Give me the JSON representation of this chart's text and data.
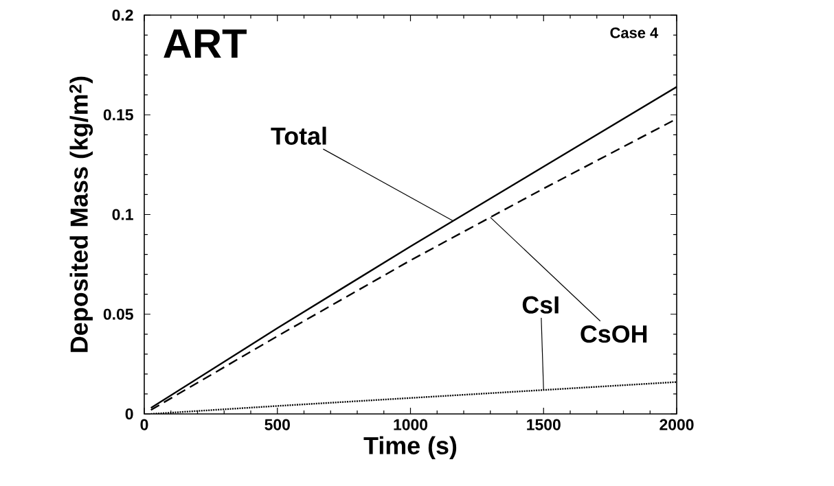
{
  "chart_data": {
    "type": "line",
    "xlabel": "Time (s)",
    "ylabel": "Deposited Mass (kg/m$^{2}$)",
    "xlim": [
      0,
      2000
    ],
    "ylim": [
      0,
      0.2
    ],
    "xticks": [
      0,
      500,
      1000,
      1500,
      2000
    ],
    "yticks": [
      0,
      0.05,
      0.1,
      0.15,
      0.2
    ],
    "grid": false,
    "marker": "none",
    "series": [
      {
        "color": "#000000",
        "line_style": "solid",
        "x": [
          25,
          500,
          1000,
          1500,
          2000
        ],
        "values": [
          0.003,
          0.043,
          0.084,
          0.124,
          0.164
        ]
      },
      {
        "color": "#000000",
        "line_style": "dashed",
        "x": [
          25,
          500,
          1000,
          1500,
          2000
        ],
        "values": [
          0.002,
          0.039,
          0.077,
          0.113,
          0.148
        ]
      },
      {
        "color": "#000000",
        "line_style": "dotted",
        "x": [
          25,
          500,
          1000,
          1500,
          2000
        ],
        "values": [
          0.0,
          0.004,
          0.008,
          0.012,
          0.016
        ]
      }
    ],
    "annotations": [
      "ART",
      "Case 4",
      {
        "text": "Total",
        "x": 1160,
        "y": 0.0968
      },
      {
        "text": "CsOH",
        "x": 1300,
        "y": 0.0986
      },
      {
        "text": "CsI",
        "x": 1500,
        "y": 0.012
      }
    ]
  }
}
